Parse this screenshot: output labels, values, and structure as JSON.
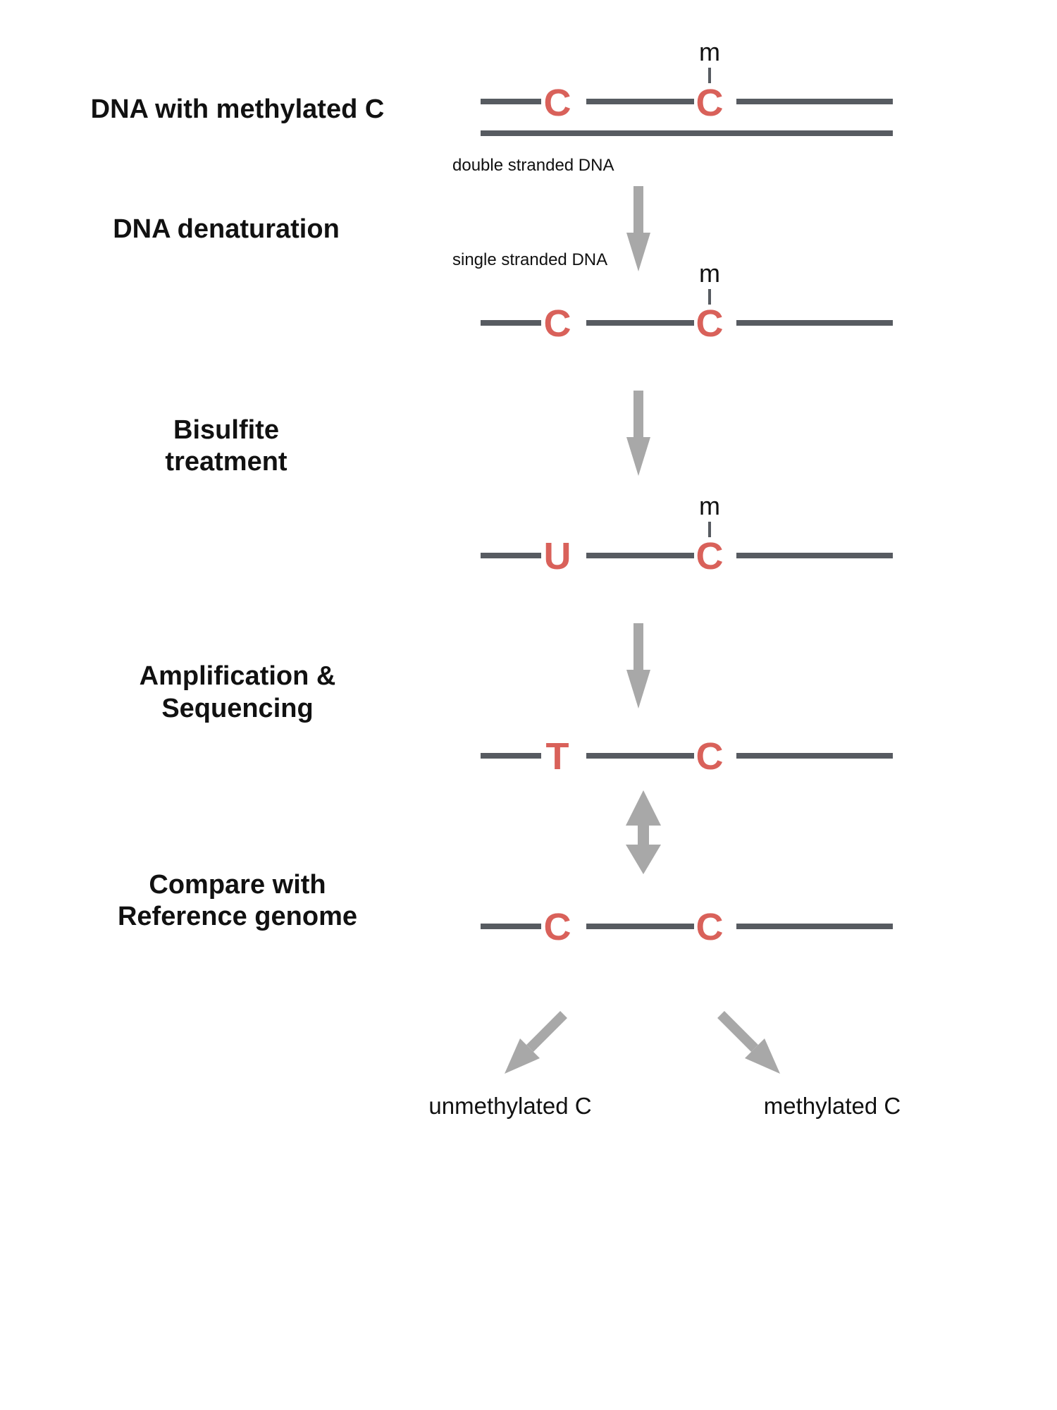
{
  "colors": {
    "strand": "#575b61",
    "base": "#d9615a",
    "arrow": "#a8a8a8",
    "text": "#111111"
  },
  "steps": {
    "step1": "DNA with methylated C",
    "step2": "DNA denaturation",
    "step3_line1": "Bisulfite",
    "step3_line2": "treatment",
    "step4_line1": "Amplification &",
    "step4_line2": "Sequencing",
    "step5_line1": "Compare with",
    "step5_line2": "Reference genome"
  },
  "notes": {
    "double": "double stranded DNA",
    "single": "single stranded DNA"
  },
  "rows": {
    "r1": {
      "left": "C",
      "right": "C",
      "mark": "m"
    },
    "r2": {
      "left": "C",
      "right": "C",
      "mark": "m"
    },
    "r3": {
      "left": "U",
      "right": "C",
      "mark": "m"
    },
    "r4": {
      "left": "T",
      "right": "C"
    },
    "r5": {
      "left": "C",
      "right": "C"
    }
  },
  "outcomes": {
    "left": "unmethylated C",
    "right": "methylated C"
  }
}
